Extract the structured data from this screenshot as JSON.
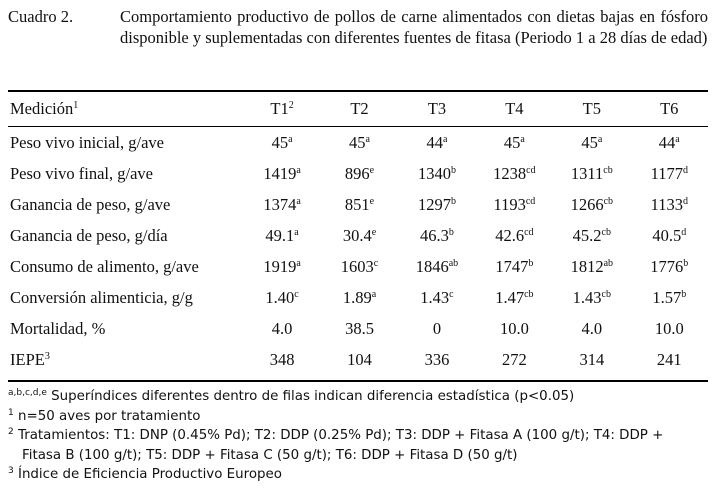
{
  "caption": {
    "label": "Cuadro 2.",
    "text": "Comportamiento productivo de pollos de carne alimentados con dietas bajas en fósforo disponible y suplementadas con diferentes fuentes de fitasa (Periodo 1 a 28 días de edad)"
  },
  "table": {
    "headers": [
      {
        "text": "Medición",
        "sup": "1"
      },
      {
        "text": "T1",
        "sup": "2"
      },
      {
        "text": "T2",
        "sup": ""
      },
      {
        "text": "T3",
        "sup": ""
      },
      {
        "text": "T4",
        "sup": ""
      },
      {
        "text": "T5",
        "sup": ""
      },
      {
        "text": "T6",
        "sup": ""
      }
    ],
    "rows": [
      {
        "label": "Peso vivo inicial, g/ave",
        "label_sup": "",
        "cells": [
          {
            "v": "45",
            "s": "a"
          },
          {
            "v": "45",
            "s": "a"
          },
          {
            "v": "44",
            "s": "a"
          },
          {
            "v": "45",
            "s": "a"
          },
          {
            "v": "45",
            "s": "a"
          },
          {
            "v": "44",
            "s": "a"
          }
        ]
      },
      {
        "label": "Peso vivo final, g/ave",
        "label_sup": "",
        "cells": [
          {
            "v": "1419",
            "s": "a"
          },
          {
            "v": "896",
            "s": "e"
          },
          {
            "v": "1340",
            "s": "b"
          },
          {
            "v": "1238",
            "s": "cd"
          },
          {
            "v": "1311",
            "s": "cb"
          },
          {
            "v": "1177",
            "s": "d"
          }
        ]
      },
      {
        "label": "Ganancia de peso, g/ave",
        "label_sup": "",
        "cells": [
          {
            "v": "1374",
            "s": "a"
          },
          {
            "v": "851",
            "s": "e"
          },
          {
            "v": "1297",
            "s": "b"
          },
          {
            "v": "1193",
            "s": "cd"
          },
          {
            "v": "1266",
            "s": "cb"
          },
          {
            "v": "1133",
            "s": "d"
          }
        ]
      },
      {
        "label": "Ganancia de peso, g/día",
        "label_sup": "",
        "cells": [
          {
            "v": "49.1",
            "s": "a"
          },
          {
            "v": "30.4",
            "s": "e"
          },
          {
            "v": "46.3",
            "s": "b"
          },
          {
            "v": "42.6",
            "s": "cd"
          },
          {
            "v": "45.2",
            "s": "cb"
          },
          {
            "v": "40.5",
            "s": "d"
          }
        ]
      },
      {
        "label": "Consumo de alimento, g/ave",
        "label_sup": "",
        "cells": [
          {
            "v": "1919",
            "s": "a"
          },
          {
            "v": "1603",
            "s": "c"
          },
          {
            "v": "1846",
            "s": "ab"
          },
          {
            "v": "1747",
            "s": "b"
          },
          {
            "v": "1812",
            "s": "ab"
          },
          {
            "v": "1776",
            "s": "b"
          }
        ]
      },
      {
        "label": "Conversión alimenticia, g/g",
        "label_sup": "",
        "cells": [
          {
            "v": "1.40",
            "s": "c"
          },
          {
            "v": "1.89",
            "s": "a"
          },
          {
            "v": "1.43",
            "s": "c"
          },
          {
            "v": "1.47",
            "s": "cb"
          },
          {
            "v": "1.43",
            "s": "cb"
          },
          {
            "v": "1.57",
            "s": "b"
          }
        ]
      },
      {
        "label": "Mortalidad, %",
        "label_sup": "",
        "cells": [
          {
            "v": "4.0",
            "s": ""
          },
          {
            "v": "38.5",
            "s": ""
          },
          {
            "v": "0",
            "s": ""
          },
          {
            "v": "10.0",
            "s": ""
          },
          {
            "v": "4.0",
            "s": ""
          },
          {
            "v": "10.0",
            "s": ""
          }
        ]
      },
      {
        "label": "IEPE",
        "label_sup": "3",
        "cells": [
          {
            "v": "348",
            "s": ""
          },
          {
            "v": "104",
            "s": ""
          },
          {
            "v": "336",
            "s": ""
          },
          {
            "v": "272",
            "s": ""
          },
          {
            "v": "314",
            "s": ""
          },
          {
            "v": "241",
            "s": ""
          }
        ]
      }
    ]
  },
  "footnotes": {
    "n0_mark": "a,b,c,d,e",
    "n0_text": " Superíndices diferentes dentro de filas indican diferencia estadística (p<0.05)",
    "n1_mark": "1",
    "n1_text": " n=50 aves por tratamiento",
    "n2_mark": "2",
    "n2_line1": " Tratamientos: T1: DNP (0.45% Pd); T2: DDP (0.25% Pd); T3: DDP + Fitasa A (100 g/t); T4: DDP +",
    "n2_line2": "Fitasa B (100 g/t); T5: DDP + Fitasa C (50 g/t); T6: DDP + Fitasa D (50 g/t)",
    "n3_mark": "3",
    "n3_text": " Índice de Eficiencia Productivo Europeo"
  }
}
